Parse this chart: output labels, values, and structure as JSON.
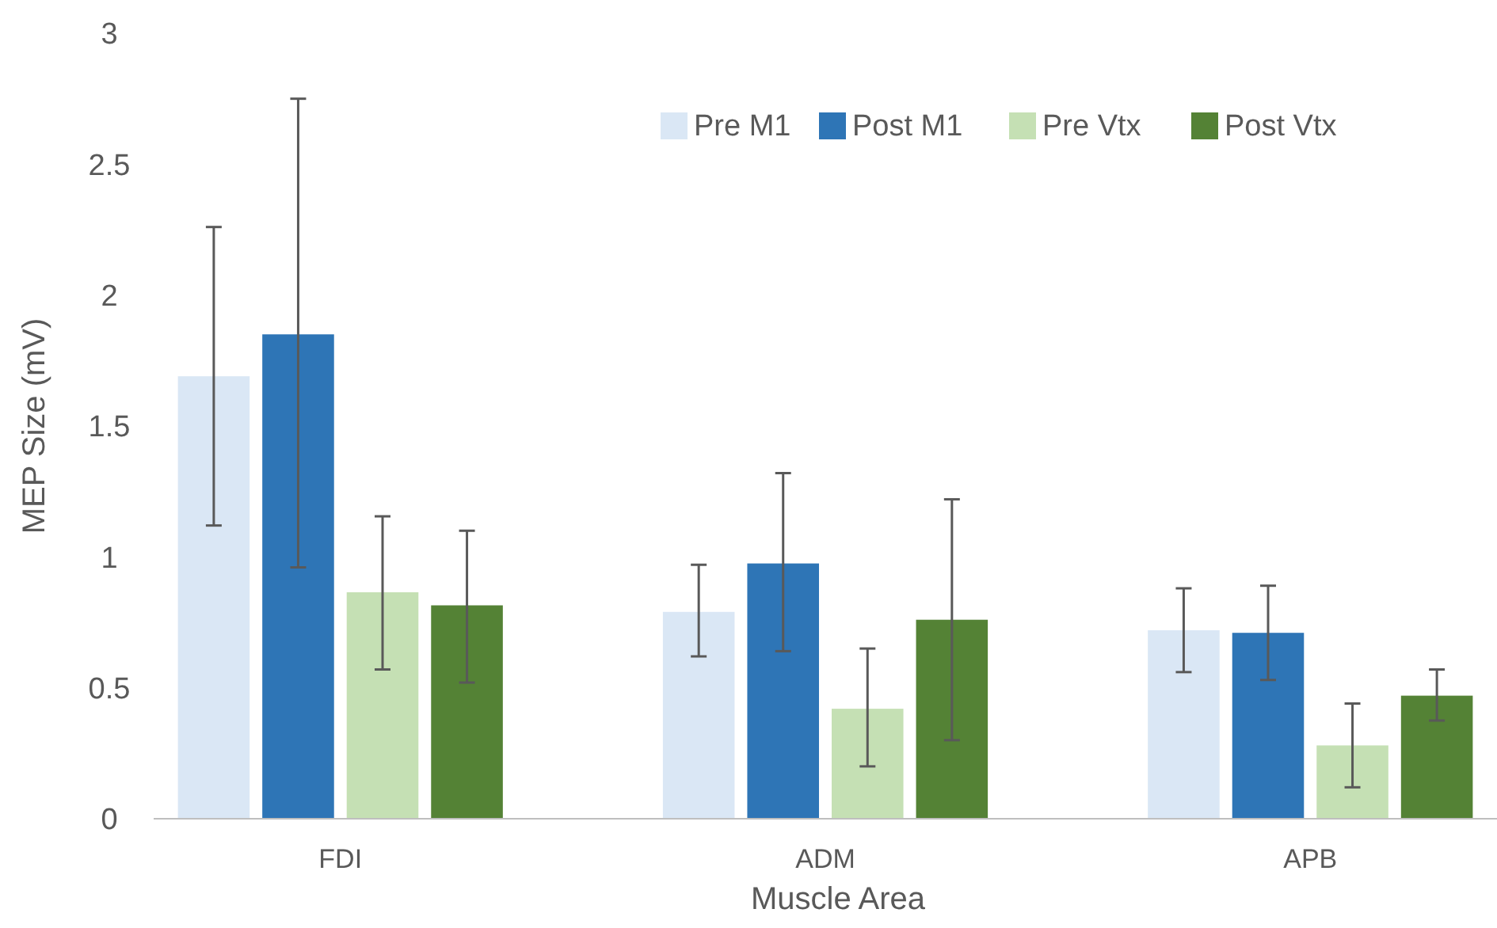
{
  "chart_data": {
    "type": "bar",
    "xlabel": "Muscle Area",
    "ylabel": "MEP Size (mV)",
    "categories": [
      "FDI",
      "ADM",
      "APB"
    ],
    "ylim": [
      0,
      3
    ],
    "yticks": [
      0,
      0.5,
      1,
      1.5,
      2,
      2.5,
      3
    ],
    "grid": false,
    "legend": "top right",
    "series": [
      {
        "name": "Pre M1",
        "color": "#dae7f5",
        "values": [
          1.69,
          0.79,
          0.72
        ],
        "errors": [
          [
            1.12,
            2.26
          ],
          [
            0.62,
            0.97
          ],
          [
            0.56,
            0.88
          ]
        ]
      },
      {
        "name": "Post M1",
        "color": "#2e75b6",
        "values": [
          1.85,
          0.975,
          0.71
        ],
        "errors": [
          [
            0.96,
            2.75
          ],
          [
            0.64,
            1.32
          ],
          [
            0.53,
            0.89
          ]
        ]
      },
      {
        "name": "Pre Vtx",
        "color": "#c5e0b4",
        "values": [
          0.865,
          0.42,
          0.28
        ],
        "errors": [
          [
            0.57,
            1.155
          ],
          [
            0.2,
            0.65
          ],
          [
            0.12,
            0.44
          ]
        ]
      },
      {
        "name": "Post Vtx",
        "color": "#548235",
        "values": [
          0.815,
          0.76,
          0.47
        ],
        "errors": [
          [
            0.52,
            1.1
          ],
          [
            0.3,
            1.22
          ],
          [
            0.375,
            0.57
          ]
        ]
      }
    ]
  }
}
